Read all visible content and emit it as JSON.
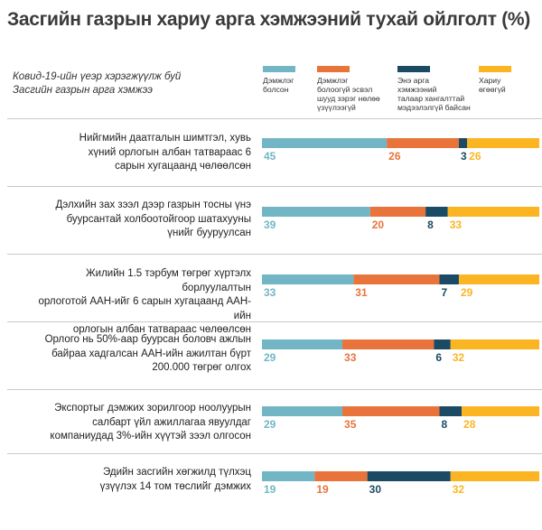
{
  "title": "Засгийн газрын хариу арга хэмжээний тухай ойлголт  (%)",
  "subtitle_lines": [
    "Ковид-19-ийн үеэр хэрэгжүүлж буй",
    "Засгийн газрын арга хэмжээ"
  ],
  "legend": [
    {
      "lines": [
        "Дэмжлэг",
        "болсон"
      ],
      "color": "#72b6c6"
    },
    {
      "lines": [
        "Дэмжлэг",
        "болоогүй эсвэл",
        "шууд зэрэг нөлөө",
        "үзүүлээгүй"
      ],
      "color": "#e8743b"
    },
    {
      "lines": [
        "Энэ арга",
        "хэмжээний",
        "талаар хангалттай",
        "мэдээлэлгүй байсан"
      ],
      "color": "#1b4a65"
    },
    {
      "lines": [
        "Хариу",
        "өгөөгүй"
      ],
      "color": "#fbb522"
    }
  ],
  "rows": [
    {
      "lines": [
        "Нийгмийн даатгалын шимтгэл, хувь",
        "хүний орлогын албан татвараас 6",
        "сарын хугацаанд чөлөөлсөн"
      ]
    },
    {
      "lines": [
        "Дэлхийн зах зээл дээр газрын тосны үнэ",
        "буурсантай холбоотойгоор шатахууны",
        "үнийг бууруулсан"
      ]
    },
    {
      "lines": [
        "Жилийн 1.5 тэрбум төгрөг хүртэлх борлуулалтын",
        "орлоготой ААН-ийг 6 сарын хугацаанд ААН-ийн",
        "орлогын албан татвараас чөлөөлсөн"
      ]
    },
    {
      "lines": [
        "Орлого нь 50%-аар буурсан боловч ажлын",
        "байраа хадгалсан ААН-ийн ажилтан бүрт",
        "200.000 төгрөг олгох"
      ]
    },
    {
      "lines": [
        "Экспортыг дэмжих зорилгоор ноолуурын",
        "салбарт үйл ажиллагаа явуулдаг",
        "компаниудад 3%-ийн хүүтэй зээл олгосон"
      ]
    },
    {
      "lines": [
        "Эдийн засгийн хөгжилд түлхэц",
        "үзүүлэх 14 том төслийг дэмжих"
      ]
    }
  ],
  "chart_data": {
    "type": "bar",
    "orientation": "horizontal",
    "stacked": true,
    "title": "Засгийн газрын хариу арга хэмжээний тухай ойлголт  (%)",
    "categories": [
      "Нийгмийн даатгалын шимтгэл, хувь хүний орлогын албан татвараас 6 сарын хугацаанд чөлөөлсөн",
      "Дэлхийн зах зээл дээр газрын тосны үнэ буурсантай холбоотойгоор шатахууны үнийг бууруулсан",
      "Жилийн 1.5 тэрбум төгрөг хүртэлх борлуулалтын орлоготой ААН-ийг 6 сарын хугацаанд ААН-ийн орлогын албан татвараас чөлөөлсөн",
      "Орлого нь 50%-аар буурсан боловч ажлын байраа хадгалсан ААН-ийн ажилтан бүрт 200.000 төгрөг олгох",
      "Экспортыг дэмжих зорилгоор ноолуурын салбарт үйл ажиллагаа явуулдаг компаниудад 3%-ийн хүүтэй зээл олгосон",
      "Эдийн засгийн хөгжилд түлхэц үзүүлэх 14 том төслийг дэмжих"
    ],
    "series": [
      {
        "name": "Дэмжлэг болсон",
        "color": "#72b6c6",
        "values": [
          45,
          39,
          33,
          29,
          29,
          19
        ]
      },
      {
        "name": "Дэмжлэг болоогүй эсвэл шууд зэрэг нөлөө үзүүлээгүй",
        "color": "#e8743b",
        "values": [
          26,
          20,
          31,
          33,
          35,
          19
        ]
      },
      {
        "name": "Энэ арга хэмжээний талаар хангалттай мэдээлэлгүй байсан",
        "color": "#1b4a65",
        "values": [
          3,
          8,
          7,
          6,
          8,
          30
        ]
      },
      {
        "name": "Хариу өгөөгүй",
        "color": "#fbb522",
        "values": [
          26,
          33,
          29,
          32,
          28,
          32
        ]
      }
    ],
    "legend_position": "top",
    "grid": false
  }
}
